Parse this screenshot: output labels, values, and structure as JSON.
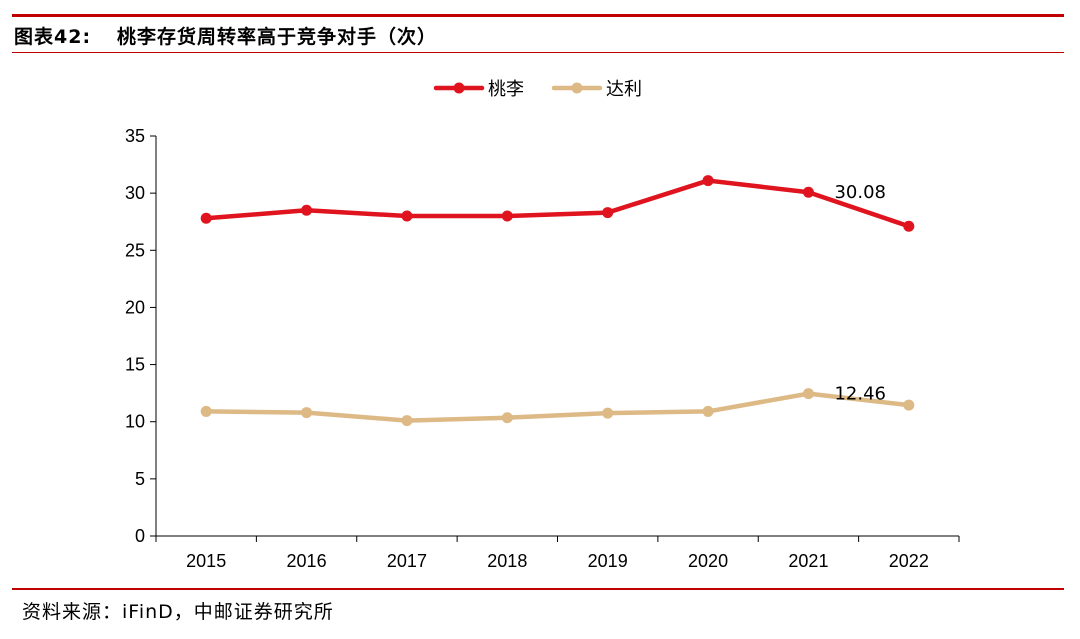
{
  "header": {
    "figure_label": "图表42:",
    "title": "桃李存货周转率高于竞争对手（次）"
  },
  "footer": {
    "source": "资料来源：iFinD，中邮证券研究所"
  },
  "colors": {
    "accent_rule": "#c00000",
    "series_taoli": "#e0141e",
    "series_dali": "#ddb985"
  },
  "chart_data": {
    "type": "line",
    "categories": [
      "2015",
      "2016",
      "2017",
      "2018",
      "2019",
      "2020",
      "2021",
      "2022"
    ],
    "series": [
      {
        "name": "桃李",
        "color": "#e0141e",
        "values": [
          27.8,
          28.5,
          28.0,
          28.0,
          28.3,
          31.1,
          30.08,
          27.1
        ]
      },
      {
        "name": "达利",
        "color": "#ddb985",
        "values": [
          10.9,
          10.8,
          10.1,
          10.35,
          10.75,
          10.9,
          12.46,
          11.45
        ]
      }
    ],
    "annotations": [
      {
        "series": 0,
        "index": 6,
        "text": "30.08"
      },
      {
        "series": 1,
        "index": 6,
        "text": "12.46"
      }
    ],
    "ylim": [
      0,
      35
    ],
    "yticks": [
      "0",
      "5",
      "10",
      "15",
      "20",
      "25",
      "30",
      "35"
    ],
    "xlabel": "",
    "ylabel": "",
    "legend": "top-center",
    "grid": false
  }
}
